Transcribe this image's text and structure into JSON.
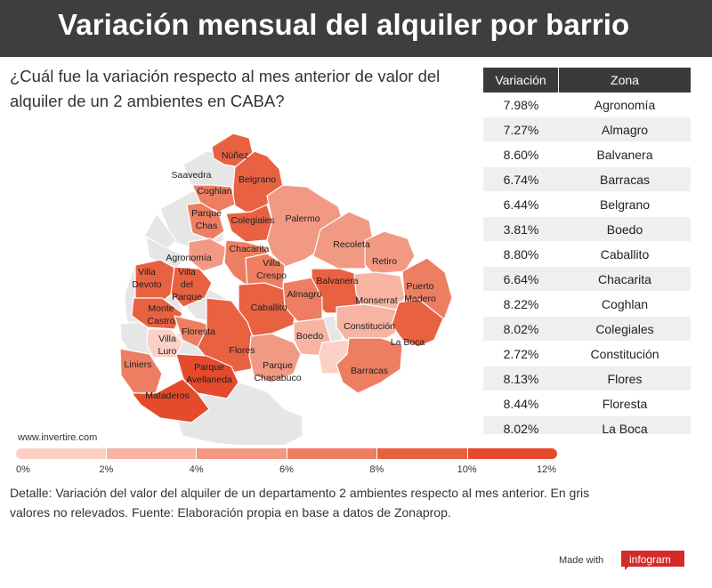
{
  "header": {
    "title": "Variación mensual del alquiler por barrio"
  },
  "subtitle": "¿Cuál fue la variación respecto al mes anterior de valor del alquiler de un 2 ambientes en CABA?",
  "source_site": "www.invertire.com",
  "note": "Detalle: Variación del valor del alquiler de un departamento 2 ambientes respecto al mes anterior. En gris valores no relevados. Fuente: Elaboración propia en base a datos de Zonaprop.",
  "footer": {
    "made_with": "Made with",
    "brand": "infogram"
  },
  "colors": {
    "header_bg": "#3e3e3e",
    "no_data": "#e6e6e6",
    "scale": [
      "#fcd0c5",
      "#f7b4a3",
      "#f29983",
      "#ed7e62",
      "#e86242",
      "#e44a2b"
    ]
  },
  "chart_data": {
    "type": "choropleth",
    "title": "Variación mensual del alquiler por barrio",
    "value_unit": "%",
    "legend": {
      "ticks": [
        "0%",
        "2%",
        "4%",
        "6%",
        "8%",
        "10%",
        "12%"
      ],
      "min": 0,
      "max": 12,
      "placement": "bottom"
    },
    "table": {
      "headers": [
        "Variación",
        "Zona"
      ],
      "rows": [
        {
          "value": "7.98%",
          "zone": "Agronomía"
        },
        {
          "value": "7.27%",
          "zone": "Almagro"
        },
        {
          "value": "8.60%",
          "zone": "Balvanera"
        },
        {
          "value": "6.74%",
          "zone": "Barracas"
        },
        {
          "value": "6.44%",
          "zone": "Belgrano"
        },
        {
          "value": "3.81%",
          "zone": "Boedo"
        },
        {
          "value": "8.80%",
          "zone": "Caballito"
        },
        {
          "value": "6.64%",
          "zone": "Chacarita"
        },
        {
          "value": "8.22%",
          "zone": "Coghlan"
        },
        {
          "value": "8.02%",
          "zone": "Colegiales"
        },
        {
          "value": "2.72%",
          "zone": "Constitución"
        },
        {
          "value": "8.13%",
          "zone": "Flores"
        },
        {
          "value": "8.44%",
          "zone": "Floresta"
        },
        {
          "value": "8.02%",
          "zone": "La Boca"
        }
      ]
    },
    "map_labels": [
      "Núñez",
      "Saavedra",
      "Coghlan",
      "Belgrano",
      "Parque Chas",
      "Colegiales",
      "Palermo",
      "Agronomía",
      "Chacarita",
      "Villa Crespo",
      "Recoleta",
      "Retiro",
      "Villa Devoto",
      "Villa del Parque",
      "Balvanera",
      "Puerto Madero",
      "Caballito",
      "Almagro",
      "Monserrat",
      "Monte Castro",
      "Floresta",
      "Constitución",
      "Villa Luro",
      "Flores",
      "Boedo",
      "La Boca",
      "Liniers",
      "Parque Avellaneda",
      "Parque Chacabuco",
      "Barracas",
      "Mataderos"
    ]
  }
}
